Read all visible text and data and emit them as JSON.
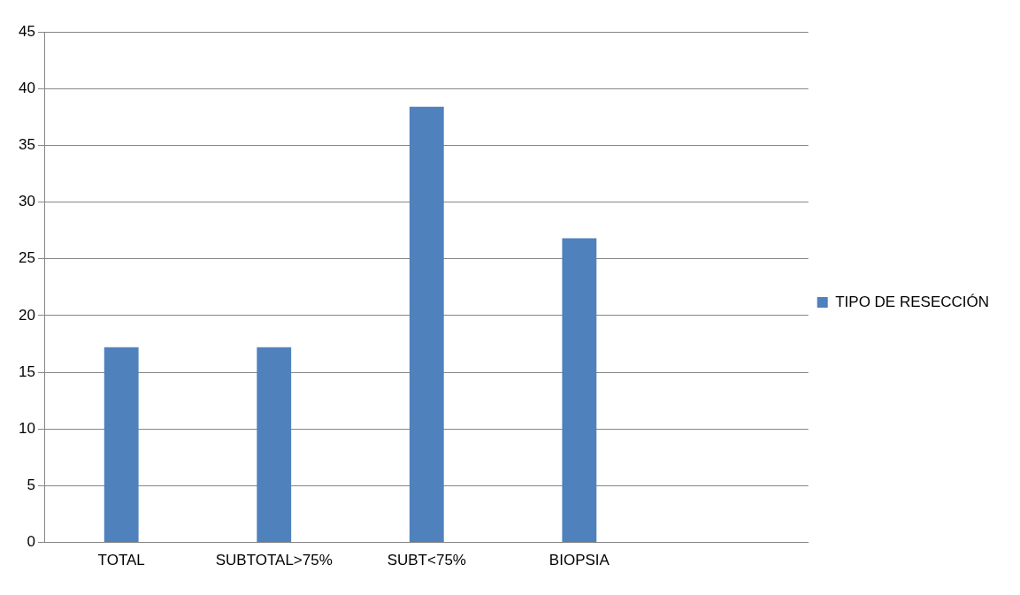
{
  "chart_data": {
    "type": "bar",
    "categories": [
      "TOTAL",
      "SUBTOTAL>75%",
      "SUBT<75%",
      "BIOPSIA",
      null
    ],
    "series": [
      {
        "name": "TIPO DE RESECCIÓN",
        "color": "#4f81bd",
        "values": [
          17.2,
          17.2,
          38.4,
          26.8,
          null
        ]
      }
    ],
    "ylim": [
      0,
      45
    ],
    "yticks": [
      0,
      5,
      10,
      15,
      20,
      25,
      30,
      35,
      40,
      45
    ],
    "grid": "y",
    "legend": "right"
  }
}
